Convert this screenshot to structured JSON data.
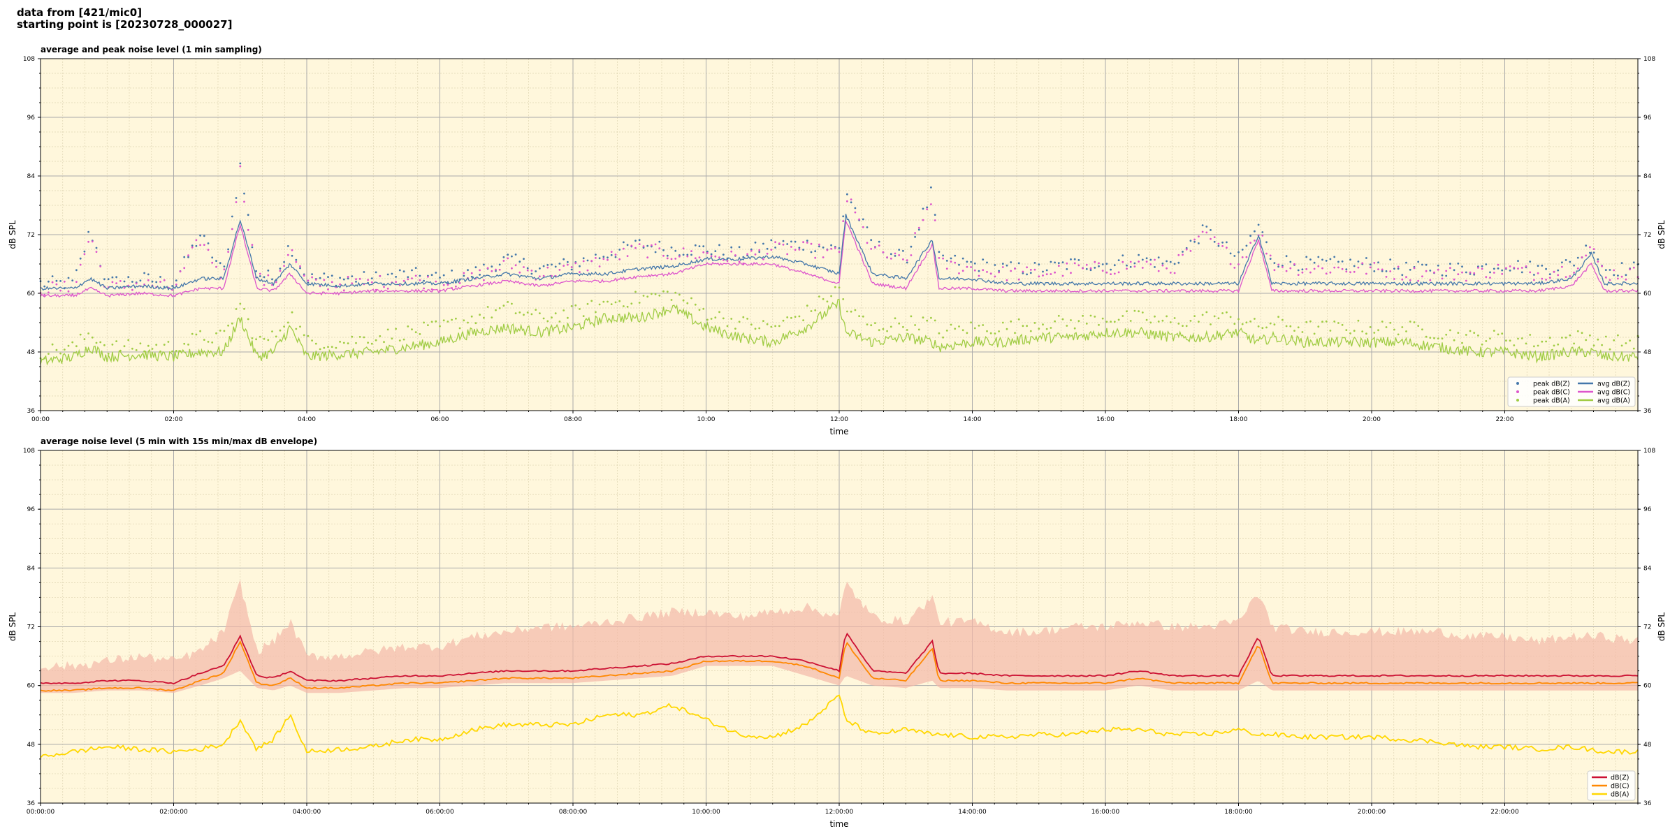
{
  "header": {
    "line1": "data from [421/mic0]",
    "line2": "starting point is [20230728_000027]"
  },
  "colors": {
    "plot_bg": "#fff7dc",
    "z": "#4477aa",
    "c": "#dd55cc",
    "a": "#a0cc44",
    "z2": "#cc1133",
    "c2": "#ff8800",
    "a2": "#ffd700",
    "envelope": "#f4b8a8"
  },
  "chart_data": [
    {
      "type": "line",
      "title": "average and peak noise level (1 min sampling)",
      "xlabel": "time",
      "ylabel": "dB SPL",
      "xlim": [
        "00:00",
        "24:00"
      ],
      "ylim": [
        36,
        108
      ],
      "yticks": [
        36,
        48,
        60,
        72,
        84,
        96,
        108
      ],
      "xticks": [
        "00:00",
        "02:00",
        "04:00",
        "06:00",
        "08:00",
        "10:00",
        "12:00",
        "14:00",
        "16:00",
        "18:00",
        "20:00",
        "22:00"
      ],
      "grid": true,
      "legend_position": "bottom-right",
      "legend": [
        "peak dB(Z)",
        "peak dB(C)",
        "peak dB(A)",
        "avg dB(Z)",
        "avg dB(C)",
        "avg dB(A)"
      ],
      "x_hours": [
        0,
        0.5,
        0.75,
        1,
        1.5,
        2,
        2.4,
        2.75,
        3,
        3.25,
        3.5,
        3.75,
        4,
        4.5,
        5,
        5.5,
        6,
        6.5,
        7,
        7.5,
        8,
        8.5,
        9,
        9.5,
        10,
        10.5,
        11,
        11.5,
        12,
        12.1,
        12.5,
        13,
        13.4,
        13.5,
        14,
        14.5,
        15,
        15.5,
        16,
        16.5,
        17,
        17.5,
        18,
        18.3,
        18.5,
        19,
        19.5,
        20,
        20.5,
        21,
        21.5,
        22,
        22.5,
        23,
        23.3,
        23.5,
        24
      ],
      "series": [
        {
          "name": "avg dB(Z)",
          "values": [
            61,
            61,
            63,
            61,
            61.5,
            61,
            63,
            63,
            75,
            63,
            62,
            66,
            62,
            61.5,
            62,
            62,
            62,
            63,
            64,
            63,
            64,
            64,
            65,
            65.5,
            67,
            67,
            67.5,
            66,
            64,
            76,
            64,
            63,
            71,
            63,
            63,
            62,
            62,
            62,
            62,
            62,
            62,
            62,
            62,
            72,
            62,
            62,
            62,
            62,
            62,
            62,
            62,
            62,
            62,
            63,
            68,
            62,
            62
          ]
        },
        {
          "name": "avg dB(C)",
          "values": [
            59.5,
            59.5,
            61,
            59.5,
            60,
            59.5,
            61,
            61,
            74,
            61,
            60.5,
            64,
            60,
            60,
            60.5,
            60.5,
            60.5,
            61.5,
            62.5,
            61.5,
            62.5,
            62.5,
            63.5,
            64,
            66,
            66,
            66,
            64,
            62,
            75,
            62,
            61,
            70,
            61,
            61,
            60.5,
            60.5,
            60.5,
            60.5,
            60.5,
            60.5,
            60.5,
            60.5,
            71,
            60.5,
            60.5,
            60.5,
            60.5,
            60.5,
            60.5,
            60.5,
            60.5,
            60.5,
            61.5,
            66,
            60.5,
            60.5
          ]
        },
        {
          "name": "avg dB(A)",
          "values": [
            46,
            47,
            49,
            47,
            47.5,
            47,
            48,
            48,
            55,
            47,
            48,
            53,
            47,
            47.5,
            48,
            49,
            50,
            52,
            53,
            52,
            53,
            55,
            55,
            57,
            53,
            51,
            50,
            53,
            58,
            52,
            50,
            51,
            50,
            49,
            50,
            50,
            51,
            51,
            52,
            52,
            51,
            51,
            52,
            50,
            51,
            50,
            50,
            50,
            50,
            49,
            48,
            48,
            47,
            48,
            48,
            47,
            47
          ]
        },
        {
          "name": "peak dB(Z)",
          "values": [
            62,
            62,
            73,
            62,
            63,
            62,
            72,
            64,
            86,
            64,
            63,
            70,
            63,
            63,
            63,
            64,
            63,
            64,
            67,
            65,
            66,
            68,
            70,
            69,
            69,
            68,
            70,
            70,
            69,
            81,
            70,
            67,
            81,
            67,
            66,
            65,
            65,
            66,
            66,
            67,
            66,
            73,
            67,
            74,
            67,
            66,
            66,
            66,
            65,
            65,
            65,
            66,
            65,
            66,
            70,
            65,
            65
          ]
        },
        {
          "name": "peak dB(C)",
          "values": [
            61,
            61,
            72,
            61,
            62,
            61,
            71,
            63,
            85,
            63,
            62,
            69,
            62,
            62,
            62,
            63,
            62,
            63,
            66,
            64,
            65,
            67,
            69,
            68,
            68,
            67,
            69,
            69,
            68,
            80,
            69,
            66,
            80,
            66,
            65,
            64,
            64,
            65,
            65,
            66,
            65,
            72,
            66,
            73,
            66,
            65,
            65,
            65,
            64,
            64,
            64,
            65,
            64,
            65,
            69,
            64,
            64
          ]
        },
        {
          "name": "peak dB(A)",
          "values": [
            48,
            49,
            52,
            49,
            49,
            49,
            51,
            51,
            58,
            50,
            51,
            56,
            50,
            50,
            51,
            52,
            53,
            55,
            57,
            55,
            56,
            58,
            59,
            60,
            56,
            54,
            53,
            56,
            61,
            57,
            53,
            54,
            54,
            52,
            53,
            53,
            54,
            54,
            55,
            55,
            54,
            55,
            55,
            53,
            54,
            53,
            53,
            53,
            53,
            52,
            51,
            51,
            50,
            51,
            51,
            50,
            50
          ]
        }
      ]
    },
    {
      "type": "line",
      "title": "average noise level (5 min with 15s min/max dB envelope)",
      "xlabel": "time",
      "ylabel": "dB SPL",
      "xlim": [
        "00:00:00",
        "24:00:00"
      ],
      "ylim": [
        36,
        108
      ],
      "yticks": [
        36,
        48,
        60,
        72,
        84,
        96,
        108
      ],
      "xticks": [
        "00:00:00",
        "02:00:00",
        "04:00:00",
        "06:00:00",
        "08:00:00",
        "10:00:00",
        "12:00:00",
        "14:00:00",
        "16:00:00",
        "18:00:00",
        "20:00:00",
        "22:00:00"
      ],
      "grid": true,
      "legend_position": "bottom-right",
      "legend": [
        "dB(Z)",
        "dB(C)",
        "dB(A)"
      ],
      "x_hours": [
        0,
        0.5,
        1,
        1.5,
        2,
        2.4,
        2.75,
        3,
        3.25,
        3.5,
        3.75,
        4,
        4.5,
        5,
        5.5,
        6,
        6.5,
        7,
        7.5,
        8,
        8.5,
        9,
        9.5,
        10,
        10.5,
        11,
        11.5,
        12,
        12.1,
        12.5,
        13,
        13.4,
        13.5,
        14,
        14.5,
        15,
        15.5,
        16,
        16.5,
        17,
        17.5,
        18,
        18.3,
        18.5,
        19,
        19.5,
        20,
        20.5,
        21,
        21.5,
        22,
        22.5,
        23,
        23.5,
        24
      ],
      "series": [
        {
          "name": "dB(Z)",
          "values": [
            60.5,
            60.5,
            61,
            61,
            60.5,
            62.5,
            64,
            70,
            62,
            61.5,
            63,
            61,
            61,
            61.5,
            62,
            62,
            62.5,
            63,
            63,
            63,
            63.5,
            64,
            64.5,
            66,
            66,
            66,
            65,
            63,
            71,
            63,
            62.5,
            69,
            62.5,
            62.5,
            62,
            62,
            62,
            62,
            63,
            62,
            62,
            62,
            70,
            62,
            62,
            62,
            62,
            62,
            62,
            62,
            62,
            62,
            62,
            62,
            62
          ]
        },
        {
          "name": "dB(C)",
          "values": [
            59,
            59,
            59.5,
            59.5,
            59,
            61,
            62.5,
            69,
            60.5,
            60,
            61.5,
            59.5,
            59.5,
            60,
            60.5,
            60.5,
            61,
            61.5,
            61.5,
            61.5,
            62,
            62.5,
            63,
            65,
            65,
            65,
            64,
            61.5,
            69,
            61.5,
            61,
            67.5,
            61,
            61,
            60.5,
            60.5,
            60.5,
            60.5,
            61.5,
            60.5,
            60.5,
            60.5,
            68.5,
            60.5,
            60.5,
            60.5,
            60.5,
            60.5,
            60.5,
            60.5,
            60.5,
            60.5,
            60.5,
            60.5,
            60.5
          ]
        },
        {
          "name": "dB(A)",
          "values": [
            45.5,
            46.5,
            47.5,
            47,
            46.5,
            47,
            48,
            53,
            47,
            49,
            54,
            46.5,
            47,
            47.5,
            49,
            49,
            51,
            52,
            52,
            52,
            54,
            54,
            56,
            53,
            50,
            49.5,
            52,
            58,
            53,
            50,
            51,
            50,
            50,
            49.5,
            49.5,
            50,
            50,
            51,
            51,
            50,
            50,
            51,
            50,
            50,
            49.5,
            49.5,
            49.5,
            49,
            48.5,
            47.5,
            47.5,
            47,
            47.5,
            46.5,
            46.5
          ]
        },
        {
          "name": "envelope max",
          "values": [
            63,
            63,
            64,
            65,
            64,
            66,
            70,
            80,
            66,
            68,
            72,
            65,
            65,
            66,
            67,
            67,
            69,
            70,
            71,
            71,
            72,
            73,
            74,
            74,
            73,
            74,
            75,
            73,
            80,
            73,
            72,
            77,
            72,
            72,
            70,
            70,
            71,
            71,
            72,
            71,
            71,
            72,
            78,
            71,
            70,
            70,
            70,
            70,
            70,
            69,
            69,
            68,
            69,
            69,
            68
          ]
        },
        {
          "name": "envelope min",
          "values": [
            58.5,
            58.5,
            59,
            59,
            58.5,
            60,
            61.5,
            63,
            59.5,
            59,
            60,
            58.5,
            58.5,
            59,
            59.5,
            59.5,
            60,
            60.5,
            60.5,
            60.5,
            61,
            61.5,
            62,
            64,
            64,
            64,
            62,
            60,
            62,
            60,
            59.5,
            61,
            59.5,
            59.5,
            59,
            59,
            59,
            59,
            60,
            59,
            59,
            59,
            61,
            59,
            59,
            59,
            59,
            59,
            59,
            59,
            59,
            59,
            59,
            59,
            59
          ]
        }
      ]
    }
  ]
}
